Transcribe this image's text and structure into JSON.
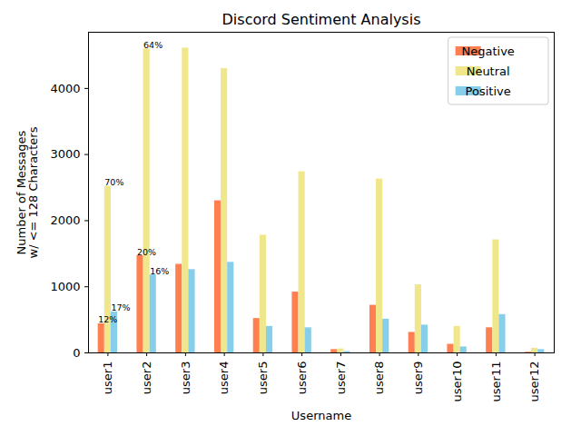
{
  "chart_data": {
    "type": "bar",
    "title": "Discord Sentiment Analysis",
    "xlabel": "Username",
    "ylabel": "Number of Messages\nw/ <= 128 Characters",
    "categories": [
      "user1",
      "user2",
      "user3",
      "user4",
      "user5",
      "user6",
      "user7",
      "user8",
      "user9",
      "user10",
      "user11",
      "user12"
    ],
    "series": [
      {
        "name": "Negative",
        "color": "#ff7f50",
        "values": [
          440,
          1470,
          1340,
          2300,
          520,
          920,
          50,
          720,
          310,
          130,
          380,
          10
        ]
      },
      {
        "name": "Neutral",
        "color": "#f0e68c",
        "values": [
          2520,
          4600,
          4610,
          4300,
          1780,
          2740,
          60,
          2630,
          1030,
          400,
          1710,
          70
        ]
      },
      {
        "name": "Positive",
        "color": "#87ceeb",
        "values": [
          620,
          1180,
          1260,
          1370,
          400,
          380,
          20,
          510,
          420,
          90,
          580,
          50
        ]
      }
    ],
    "annotations": [
      {
        "category": "user1",
        "series": "Negative",
        "text": "12%"
      },
      {
        "category": "user1",
        "series": "Neutral",
        "text": "70%"
      },
      {
        "category": "user1",
        "series": "Positive",
        "text": "17%"
      },
      {
        "category": "user2",
        "series": "Negative",
        "text": "20%"
      },
      {
        "category": "user2",
        "series": "Neutral",
        "text": "64%"
      },
      {
        "category": "user2",
        "series": "Positive",
        "text": "16%"
      }
    ],
    "ylim": [
      0,
      4850
    ],
    "yticks": [
      0,
      1000,
      2000,
      3000,
      4000
    ],
    "grid": false,
    "legend": "upper right"
  }
}
